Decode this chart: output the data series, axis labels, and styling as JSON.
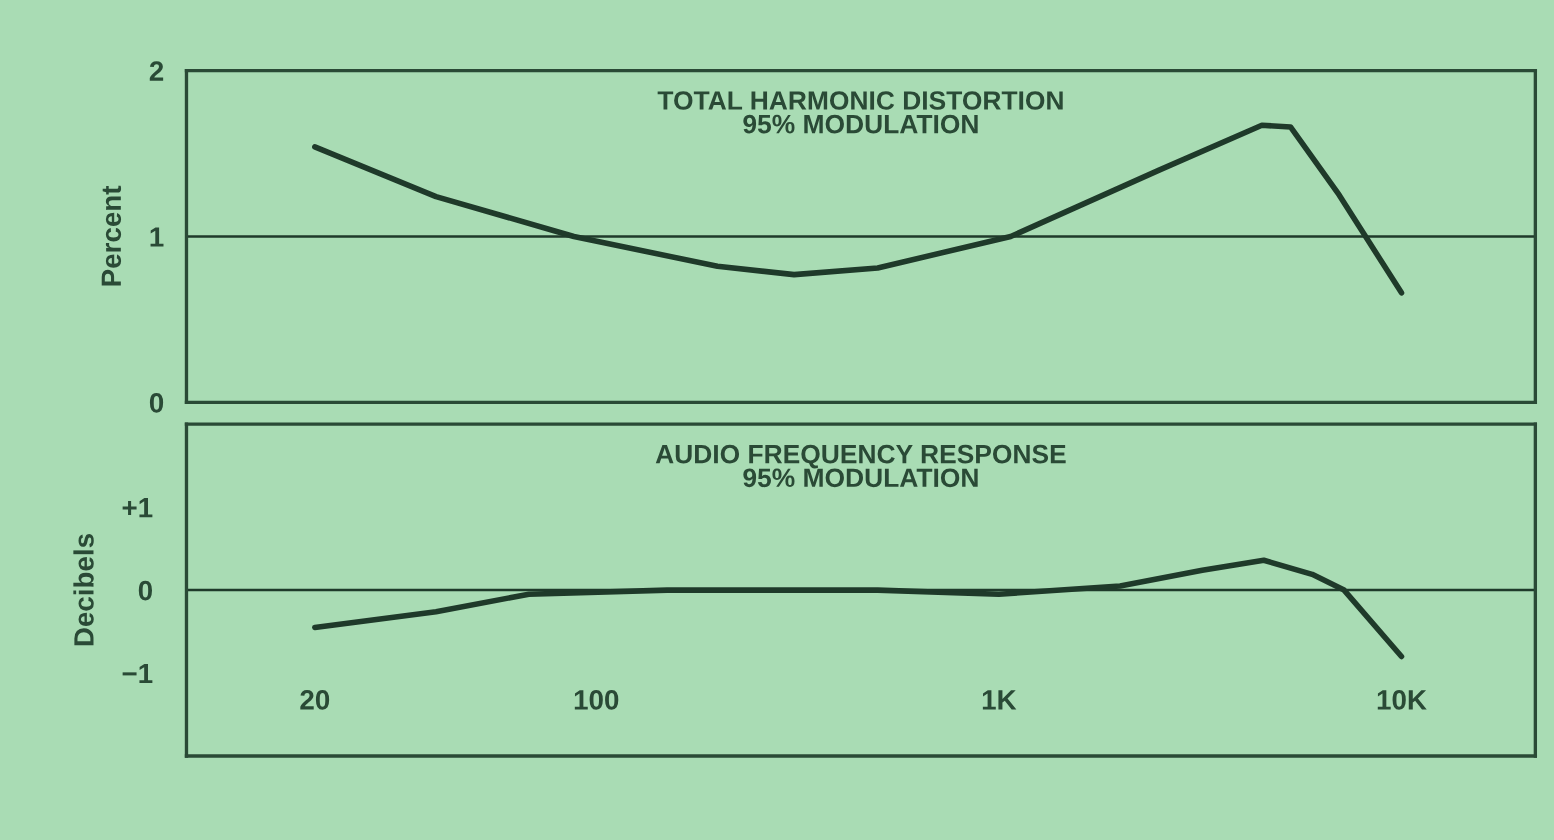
{
  "chart_data": [
    {
      "type": "line",
      "title": "TOTAL HARMONIC DISTORTION",
      "subtitle": "95% MODULATION",
      "ylabel": "Percent",
      "log": "x",
      "x": [
        20,
        40,
        88,
        200,
        310,
        500,
        1070,
        2500,
        4500,
        5300,
        7000,
        10000
      ],
      "series": [
        {
          "color": "#1f3a2a",
          "values": [
            1.54,
            1.24,
            1.0,
            0.82,
            0.77,
            0.81,
            1.0,
            1.4,
            1.67,
            1.66,
            1.25,
            0.66
          ]
        }
      ],
      "xlim": [
        9.6,
        21500
      ],
      "ylim": [
        0,
        2
      ],
      "yticks": [
        0,
        1,
        2
      ],
      "tick_labels": "y",
      "ref_lines": [
        {
          "axis": "y",
          "value": 1,
          "color": "#1f3a2a"
        }
      ]
    },
    {
      "type": "line",
      "title": "AUDIO FREQUENCY RESPONSE",
      "subtitle": "95% MODULATION",
      "ylabel": "Decibels",
      "log": "x",
      "x": [
        20,
        40,
        68,
        150,
        500,
        1000,
        2000,
        3200,
        4550,
        6000,
        7200,
        10000
      ],
      "series": [
        {
          "color": "#1f3a2a",
          "values": [
            -0.45,
            -0.26,
            -0.05,
            0,
            0,
            -0.05,
            0.05,
            0.24,
            0.36,
            0.19,
            0,
            -0.8
          ]
        }
      ],
      "xlim": [
        9.6,
        21500
      ],
      "xticks": [
        20,
        100,
        {
          "value": 1000,
          "label": "1K"
        },
        {
          "value": 10000,
          "label": "10K"
        }
      ],
      "ylim": [
        -2,
        2
      ],
      "yticks": [
        {
          "value": 1,
          "label": "+1"
        },
        0,
        {
          "value": -1,
          "label": "−1"
        }
      ],
      "ref_lines": [
        {
          "axis": "y",
          "value": 0,
          "color": "#1f3a2a"
        }
      ]
    }
  ]
}
